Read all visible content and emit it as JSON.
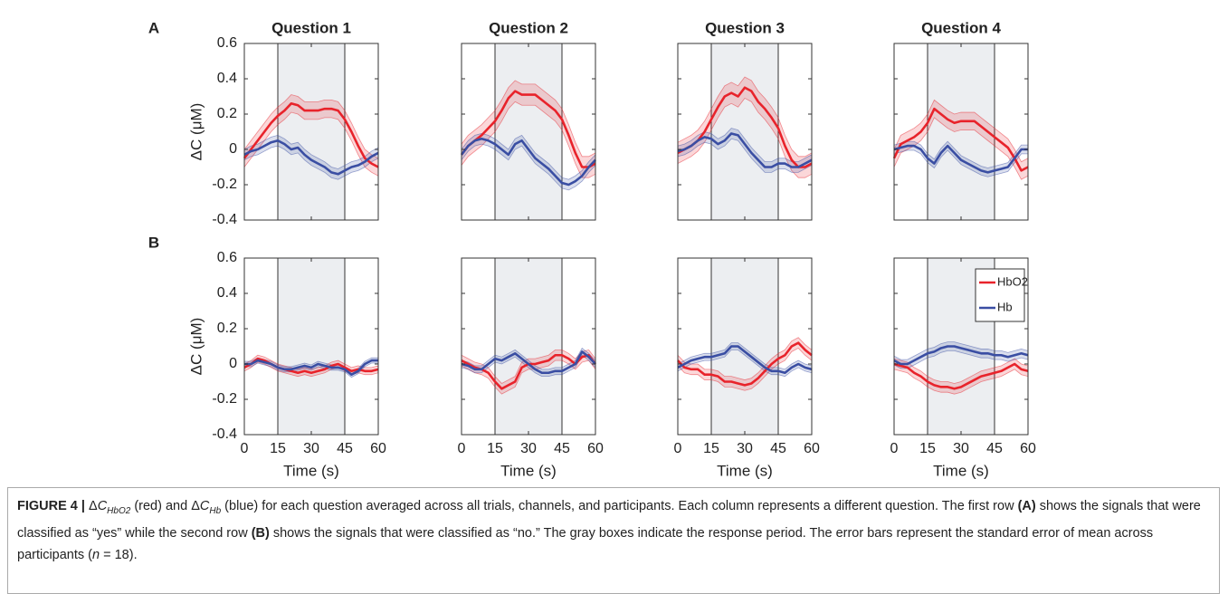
{
  "row_labels": [
    "A",
    "B"
  ],
  "chart_data": [
    {
      "type": "line",
      "title": "Question 1",
      "ylabel": "ΔC (μM)",
      "x": [
        0,
        3,
        6,
        9,
        12,
        15,
        18,
        21,
        24,
        27,
        30,
        33,
        36,
        39,
        42,
        45,
        48,
        51,
        54,
        57,
        60
      ],
      "xlim": [
        0,
        60
      ],
      "ylim": [
        -0.4,
        0.6
      ],
      "xticks": [
        0,
        15,
        30,
        45,
        60
      ],
      "yticks": [
        -0.4,
        -0.2,
        0,
        0.2,
        0.4,
        0.6
      ],
      "shade": [
        15,
        45
      ],
      "show_xtick_labels": false,
      "show_ytick_labels": true,
      "series": [
        {
          "name": "HbO2",
          "color": "#e8232b",
          "error": 0.05,
          "values": [
            -0.05,
            0.0,
            0.05,
            0.1,
            0.15,
            0.19,
            0.22,
            0.26,
            0.25,
            0.22,
            0.22,
            0.22,
            0.23,
            0.23,
            0.22,
            0.17,
            0.1,
            0.02,
            -0.05,
            -0.08,
            -0.1
          ]
        },
        {
          "name": "Hb",
          "color": "#3a4ea3",
          "error": 0.03,
          "values": [
            -0.03,
            -0.01,
            0.0,
            0.02,
            0.04,
            0.05,
            0.03,
            0.0,
            0.01,
            -0.03,
            -0.06,
            -0.08,
            -0.1,
            -0.13,
            -0.14,
            -0.12,
            -0.1,
            -0.09,
            -0.07,
            -0.04,
            -0.02
          ]
        }
      ]
    },
    {
      "type": "line",
      "title": "Question 2",
      "x": [
        0,
        3,
        6,
        9,
        12,
        15,
        18,
        21,
        24,
        27,
        30,
        33,
        36,
        39,
        42,
        45,
        48,
        51,
        54,
        57,
        60
      ],
      "xlim": [
        0,
        60
      ],
      "ylim": [
        -0.4,
        0.6
      ],
      "xticks": [
        0,
        15,
        30,
        45,
        60
      ],
      "yticks": [
        -0.4,
        -0.2,
        0,
        0.2,
        0.4,
        0.6
      ],
      "shade": [
        15,
        45
      ],
      "show_xtick_labels": false,
      "show_ytick_labels": false,
      "series": [
        {
          "name": "HbO2",
          "color": "#e8232b",
          "error": 0.06,
          "values": [
            -0.03,
            0.02,
            0.05,
            0.08,
            0.12,
            0.16,
            0.22,
            0.29,
            0.33,
            0.31,
            0.31,
            0.31,
            0.28,
            0.25,
            0.22,
            0.17,
            0.08,
            -0.02,
            -0.1,
            -0.1,
            -0.08
          ]
        },
        {
          "name": "Hb",
          "color": "#3a4ea3",
          "error": 0.03,
          "values": [
            -0.03,
            0.02,
            0.05,
            0.06,
            0.05,
            0.03,
            0.0,
            -0.03,
            0.03,
            0.05,
            0.0,
            -0.05,
            -0.08,
            -0.11,
            -0.15,
            -0.19,
            -0.2,
            -0.18,
            -0.15,
            -0.1,
            -0.06
          ]
        }
      ]
    },
    {
      "type": "line",
      "title": "Question 3",
      "x": [
        0,
        3,
        6,
        9,
        12,
        15,
        18,
        21,
        24,
        27,
        30,
        33,
        36,
        39,
        42,
        45,
        48,
        51,
        54,
        57,
        60
      ],
      "xlim": [
        0,
        60
      ],
      "ylim": [
        -0.4,
        0.6
      ],
      "xticks": [
        0,
        15,
        30,
        45,
        60
      ],
      "yticks": [
        -0.4,
        -0.2,
        0,
        0.2,
        0.4,
        0.6
      ],
      "shade": [
        15,
        45
      ],
      "show_xtick_labels": false,
      "show_ytick_labels": false,
      "series": [
        {
          "name": "HbO2",
          "color": "#e8232b",
          "error": 0.06,
          "values": [
            -0.02,
            0.0,
            0.02,
            0.05,
            0.1,
            0.17,
            0.24,
            0.3,
            0.32,
            0.3,
            0.35,
            0.33,
            0.27,
            0.23,
            0.18,
            0.12,
            0.02,
            -0.06,
            -0.1,
            -0.1,
            -0.08
          ]
        },
        {
          "name": "Hb",
          "color": "#3a4ea3",
          "error": 0.03,
          "values": [
            -0.01,
            0.0,
            0.02,
            0.05,
            0.07,
            0.06,
            0.03,
            0.05,
            0.09,
            0.08,
            0.03,
            -0.02,
            -0.06,
            -0.1,
            -0.1,
            -0.08,
            -0.08,
            -0.1,
            -0.1,
            -0.08,
            -0.06
          ]
        }
      ]
    },
    {
      "type": "line",
      "title": "Question 4",
      "x": [
        0,
        3,
        6,
        9,
        12,
        15,
        18,
        21,
        24,
        27,
        30,
        33,
        36,
        39,
        42,
        45,
        48,
        51,
        54,
        57,
        60
      ],
      "xlim": [
        0,
        60
      ],
      "ylim": [
        -0.4,
        0.6
      ],
      "xticks": [
        0,
        15,
        30,
        45,
        60
      ],
      "yticks": [
        -0.4,
        -0.2,
        0,
        0.2,
        0.4,
        0.6
      ],
      "shade": [
        15,
        45
      ],
      "show_xtick_labels": false,
      "show_ytick_labels": false,
      "series": [
        {
          "name": "HbO2",
          "color": "#e8232b",
          "error": 0.05,
          "values": [
            -0.05,
            0.03,
            0.05,
            0.07,
            0.1,
            0.15,
            0.23,
            0.2,
            0.17,
            0.15,
            0.16,
            0.16,
            0.16,
            0.13,
            0.1,
            0.07,
            0.04,
            0.01,
            -0.05,
            -0.12,
            -0.1
          ]
        },
        {
          "name": "Hb",
          "color": "#3a4ea3",
          "error": 0.025,
          "values": [
            0.0,
            0.01,
            0.02,
            0.02,
            0.0,
            -0.05,
            -0.08,
            -0.02,
            0.02,
            -0.02,
            -0.06,
            -0.08,
            -0.1,
            -0.12,
            -0.13,
            -0.12,
            -0.11,
            -0.1,
            -0.05,
            0.0,
            0.0
          ]
        }
      ]
    },
    {
      "type": "line",
      "ylabel": "ΔC (μM)",
      "xlabel": "Time (s)",
      "x": [
        0,
        3,
        6,
        9,
        12,
        15,
        18,
        21,
        24,
        27,
        30,
        33,
        36,
        39,
        42,
        45,
        48,
        51,
        54,
        57,
        60
      ],
      "xlim": [
        0,
        60
      ],
      "ylim": [
        -0.4,
        0.6
      ],
      "xticks": [
        0,
        15,
        30,
        45,
        60
      ],
      "yticks": [
        -0.4,
        -0.2,
        0,
        0.2,
        0.4,
        0.6
      ],
      "shade": [
        15,
        45
      ],
      "show_xtick_labels": true,
      "show_ytick_labels": true,
      "series": [
        {
          "name": "HbO2",
          "color": "#e8232b",
          "error": 0.02,
          "values": [
            -0.02,
            0.0,
            0.03,
            0.02,
            0.0,
            -0.02,
            -0.03,
            -0.04,
            -0.05,
            -0.04,
            -0.05,
            -0.04,
            -0.03,
            -0.01,
            0.0,
            -0.02,
            -0.04,
            -0.03,
            -0.04,
            -0.04,
            -0.03
          ]
        },
        {
          "name": "Hb",
          "color": "#3a4ea3",
          "error": 0.015,
          "values": [
            0.0,
            0.0,
            0.02,
            0.01,
            0.0,
            -0.02,
            -0.03,
            -0.03,
            -0.02,
            -0.01,
            -0.02,
            0.0,
            -0.01,
            -0.02,
            -0.02,
            -0.03,
            -0.06,
            -0.04,
            0.0,
            0.02,
            0.02
          ]
        }
      ]
    },
    {
      "type": "line",
      "xlabel": "Time (s)",
      "x": [
        0,
        3,
        6,
        9,
        12,
        15,
        18,
        21,
        24,
        27,
        30,
        33,
        36,
        39,
        42,
        45,
        48,
        51,
        54,
        57,
        60
      ],
      "xlim": [
        0,
        60
      ],
      "ylim": [
        -0.4,
        0.6
      ],
      "xticks": [
        0,
        15,
        30,
        45,
        60
      ],
      "yticks": [
        -0.4,
        -0.2,
        0,
        0.2,
        0.4,
        0.6
      ],
      "shade": [
        15,
        45
      ],
      "show_xtick_labels": true,
      "show_ytick_labels": false,
      "series": [
        {
          "name": "HbO2",
          "color": "#e8232b",
          "error": 0.03,
          "values": [
            0.02,
            0.0,
            -0.02,
            -0.03,
            -0.05,
            -0.1,
            -0.14,
            -0.12,
            -0.1,
            -0.02,
            0.0,
            0.0,
            0.01,
            0.02,
            0.05,
            0.05,
            0.03,
            0.0,
            0.04,
            0.05,
            0.0
          ]
        },
        {
          "name": "Hb",
          "color": "#3a4ea3",
          "error": 0.02,
          "values": [
            0.0,
            -0.01,
            -0.03,
            -0.03,
            0.0,
            0.03,
            0.02,
            0.04,
            0.06,
            0.03,
            0.0,
            -0.03,
            -0.05,
            -0.05,
            -0.04,
            -0.04,
            -0.02,
            0.0,
            0.07,
            0.04,
            0.0
          ]
        }
      ]
    },
    {
      "type": "line",
      "xlabel": "Time (s)",
      "x": [
        0,
        3,
        6,
        9,
        12,
        15,
        18,
        21,
        24,
        27,
        30,
        33,
        36,
        39,
        42,
        45,
        48,
        51,
        54,
        57,
        60
      ],
      "xlim": [
        0,
        60
      ],
      "ylim": [
        -0.4,
        0.6
      ],
      "xticks": [
        0,
        15,
        30,
        45,
        60
      ],
      "yticks": [
        -0.4,
        -0.2,
        0,
        0.2,
        0.4,
        0.6
      ],
      "shade": [
        15,
        45
      ],
      "show_xtick_labels": true,
      "show_ytick_labels": false,
      "series": [
        {
          "name": "HbO2",
          "color": "#e8232b",
          "error": 0.03,
          "values": [
            0.02,
            -0.02,
            -0.03,
            -0.03,
            -0.06,
            -0.06,
            -0.07,
            -0.1,
            -0.1,
            -0.11,
            -0.12,
            -0.11,
            -0.08,
            -0.04,
            0.0,
            0.03,
            0.05,
            0.1,
            0.12,
            0.08,
            0.05
          ]
        },
        {
          "name": "Hb",
          "color": "#3a4ea3",
          "error": 0.02,
          "values": [
            -0.02,
            0.0,
            0.02,
            0.03,
            0.04,
            0.04,
            0.05,
            0.06,
            0.1,
            0.1,
            0.07,
            0.04,
            0.01,
            -0.02,
            -0.04,
            -0.04,
            -0.05,
            -0.02,
            0.0,
            -0.02,
            -0.03
          ]
        }
      ]
    },
    {
      "type": "line",
      "xlabel": "Time (s)",
      "x": [
        0,
        3,
        6,
        9,
        12,
        15,
        18,
        21,
        24,
        27,
        30,
        33,
        36,
        39,
        42,
        45,
        48,
        51,
        54,
        57,
        60
      ],
      "xlim": [
        0,
        60
      ],
      "ylim": [
        -0.4,
        0.6
      ],
      "xticks": [
        0,
        15,
        30,
        45,
        60
      ],
      "yticks": [
        -0.4,
        -0.2,
        0,
        0.2,
        0.4,
        0.6
      ],
      "shade": [
        15,
        45
      ],
      "show_xtick_labels": true,
      "show_ytick_labels": false,
      "legend": "upper right",
      "series": [
        {
          "name": "HbO2",
          "color": "#e8232b",
          "error": 0.03,
          "values": [
            0.0,
            -0.01,
            -0.02,
            -0.05,
            -0.07,
            -0.1,
            -0.12,
            -0.13,
            -0.13,
            -0.14,
            -0.13,
            -0.11,
            -0.09,
            -0.07,
            -0.06,
            -0.05,
            -0.04,
            -0.02,
            0.0,
            -0.03,
            -0.04
          ]
        },
        {
          "name": "Hb",
          "color": "#3a4ea3",
          "error": 0.025,
          "values": [
            0.02,
            0.0,
            0.0,
            0.02,
            0.04,
            0.06,
            0.07,
            0.09,
            0.1,
            0.1,
            0.09,
            0.08,
            0.07,
            0.06,
            0.06,
            0.05,
            0.05,
            0.04,
            0.05,
            0.06,
            0.05
          ]
        }
      ]
    }
  ],
  "caption": {
    "parts": [
      "FIGURE 4 |",
      " Δ",
      "C",
      "HbO2",
      " (red) and Δ",
      "C",
      "Hb",
      " (blue) for each question averaged across all trials, channels, and participants. Each column represents a different question. The first row ",
      "(A)",
      " shows the signals that were classified as “yes” while the second row ",
      "(B)",
      " shows the signals that were classified as “no.” The gray boxes indicate the response period. The error bars represent the standard error of mean across participants (",
      "n",
      " = 18)."
    ]
  }
}
